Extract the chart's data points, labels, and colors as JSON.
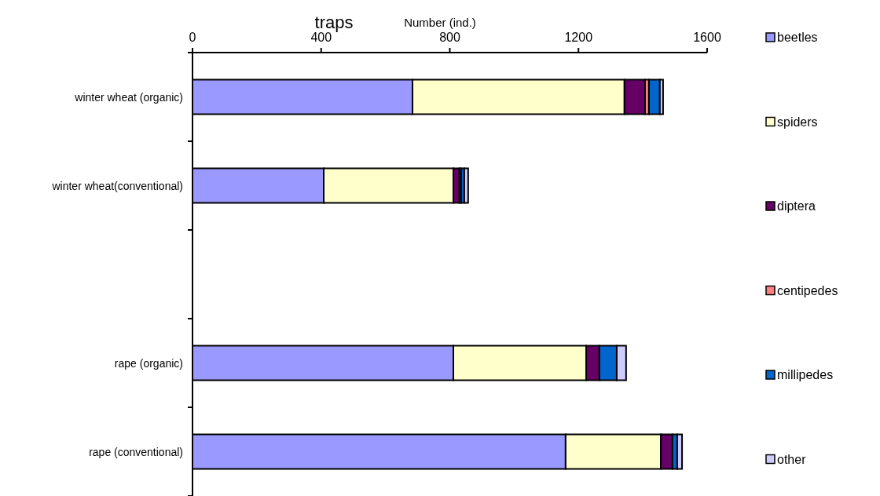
{
  "chart_data": {
    "type": "bar",
    "orientation": "horizontal",
    "stacked": true,
    "title": "traps",
    "xlabel": "Number (ind.)",
    "categories": [
      "winter wheat (organic)",
      "winter wheat(conventional)",
      null,
      "rape (organic)",
      "rape (conventional)"
    ],
    "series": [
      {
        "name": "beetles",
        "color": "#9999ff",
        "values": [
          684,
          408,
          null,
          811,
          1160
        ]
      },
      {
        "name": "spiders",
        "color": "#ffffcc",
        "values": [
          659,
          403,
          null,
          413,
          296
        ]
      },
      {
        "name": "diptera",
        "color": "#660066",
        "values": [
          64,
          19,
          null,
          41,
          36
        ]
      },
      {
        "name": "centipedes",
        "color": "#ff8080",
        "values": [
          12,
          5,
          null,
          0,
          0
        ]
      },
      {
        "name": "millipedes",
        "color": "#0066cc",
        "values": [
          34,
          10,
          null,
          54,
          15
        ]
      },
      {
        "name": "other",
        "color": "#ccccff",
        "values": [
          10,
          12,
          null,
          29,
          15
        ]
      }
    ],
    "xlim": [
      0,
      1600
    ],
    "xticks": [
      0,
      400,
      800,
      1200,
      1600
    ],
    "legend": "right"
  }
}
